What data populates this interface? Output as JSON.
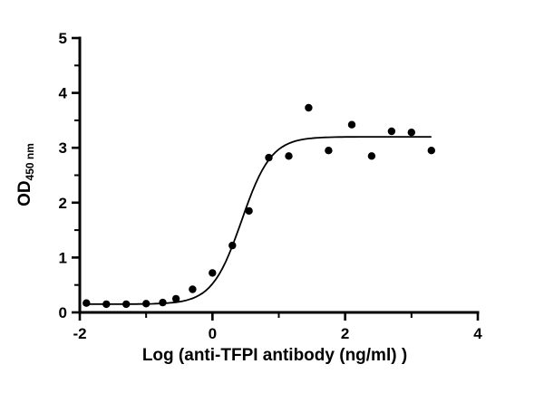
{
  "chart_data": {
    "type": "scatter",
    "title": "",
    "xlabel": "Log (anti-TFPI antibody (ng/ml) )",
    "ylabel_main": "OD",
    "ylabel_sub": "450 nm",
    "xlim": [
      -2,
      4
    ],
    "ylim": [
      0,
      5
    ],
    "x_major_ticks": [
      -2,
      0,
      2,
      4
    ],
    "x_minor_ticks": [
      -1,
      1,
      3
    ],
    "y_major_ticks": [
      0,
      1,
      2,
      3,
      4,
      5
    ],
    "y_minor_ticks": [
      0.5,
      1.5,
      2.5,
      3.5,
      4.5
    ],
    "grid": false,
    "legend": "none",
    "points": [
      [
        -1.9,
        0.17
      ],
      [
        -1.6,
        0.15
      ],
      [
        -1.3,
        0.15
      ],
      [
        -1.0,
        0.16
      ],
      [
        -0.75,
        0.18
      ],
      [
        -0.55,
        0.25
      ],
      [
        -0.3,
        0.42
      ],
      [
        0.0,
        0.72
      ],
      [
        0.3,
        1.22
      ],
      [
        0.55,
        1.85
      ],
      [
        0.85,
        2.82
      ],
      [
        1.15,
        2.85
      ],
      [
        1.45,
        3.73
      ],
      [
        1.75,
        2.95
      ],
      [
        2.1,
        3.42
      ],
      [
        2.4,
        2.85
      ],
      [
        2.7,
        3.3
      ],
      [
        3.0,
        3.28
      ],
      [
        3.3,
        2.95
      ]
    ],
    "fit_curve": {
      "model": "4PL-sigmoid",
      "bottom": 0.15,
      "top": 3.2,
      "logEC50": 0.44,
      "hill": 1.95,
      "x_start": -1.95,
      "x_end": 3.3
    },
    "colors": {
      "axis": "#000000",
      "points": "#000000",
      "curve": "#000000",
      "background": "#ffffff"
    }
  }
}
